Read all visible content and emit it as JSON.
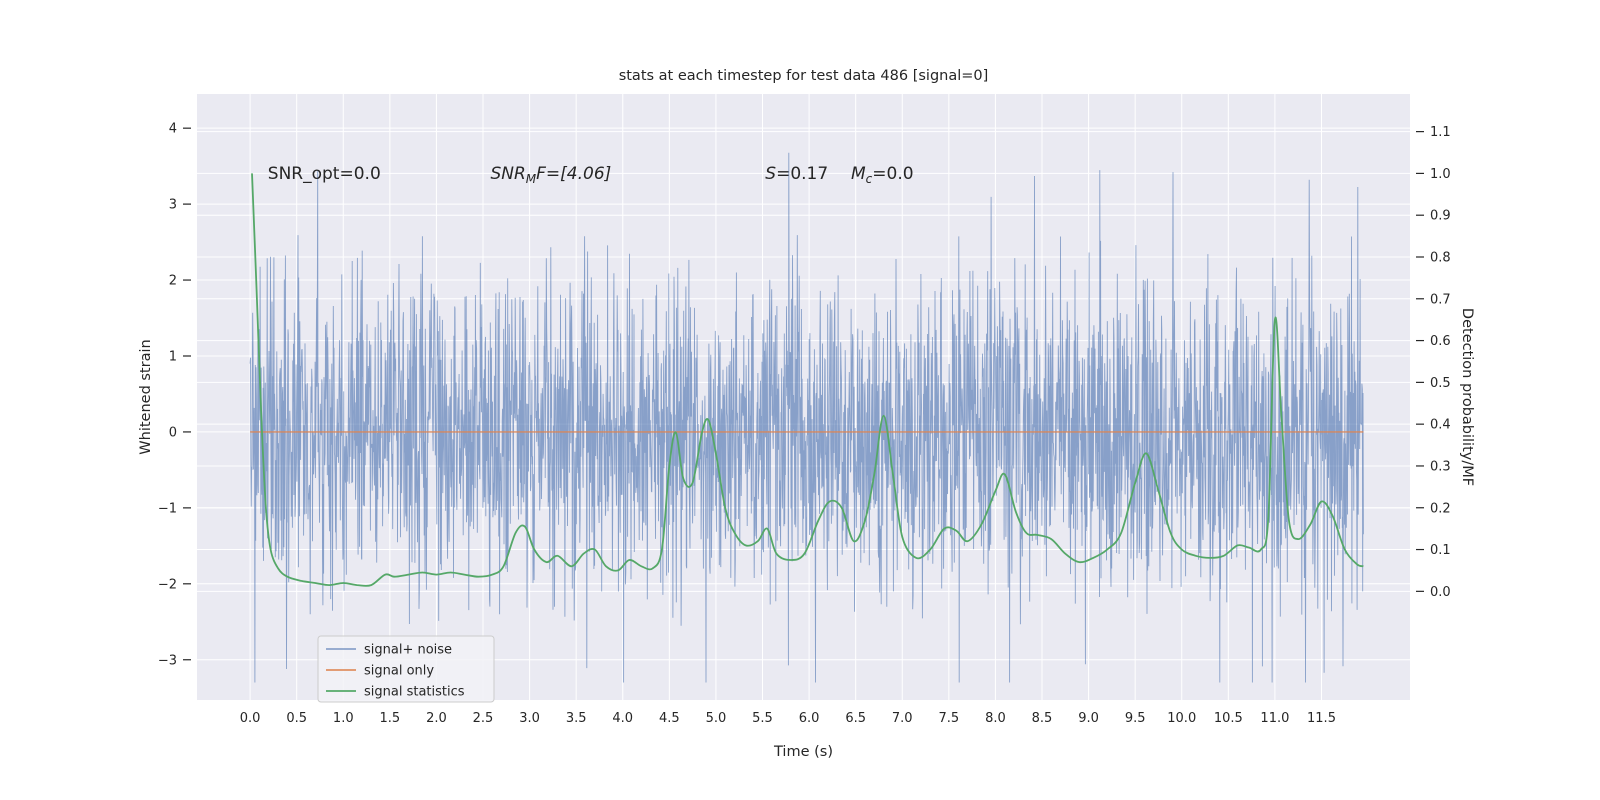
{
  "style": {
    "page_bg": "#ffffff",
    "plot_bg": "#eaeaf2",
    "grid": "#ffffff",
    "text": "#262626",
    "tick": "#262626",
    "legend_bg": "#f2f2f7",
    "legend_border": "#cccccc"
  },
  "chart_data": {
    "type": "line",
    "title": "stats at each timestep for test data 486 [signal=0]",
    "xlabel": "Time (s)",
    "ylabel_left": "Whitened strain",
    "ylabel_right": "Detection probability/MF",
    "xlim": [
      -0.57,
      12.45
    ],
    "ylim_left": [
      -3.53,
      4.45
    ],
    "ylim_right": [
      -0.26,
      1.19
    ],
    "x_tick_values": [
      0,
      0.5,
      1,
      1.5,
      2,
      2.5,
      3,
      3.5,
      4,
      4.5,
      5,
      5.5,
      6,
      6.5,
      7,
      7.5,
      8,
      8.5,
      9,
      9.5,
      10,
      10.5,
      11,
      11.5
    ],
    "x_tick_labels": [
      "0.0",
      "0.5",
      "1.0",
      "1.5",
      "2.0",
      "2.5",
      "3.0",
      "3.5",
      "4.0",
      "4.5",
      "5.0",
      "5.5",
      "6.0",
      "6.5",
      "7.0",
      "7.5",
      "8.0",
      "8.5",
      "9.0",
      "9.5",
      "10.0",
      "10.5",
      "11.0",
      "11.5"
    ],
    "y_left_tick_values": [
      -3,
      -2,
      -1,
      0,
      1,
      2,
      3,
      4
    ],
    "y_left_tick_labels": [
      "−3",
      "−2",
      "−1",
      "0",
      "1",
      "2",
      "3",
      "4"
    ],
    "y_right_tick_values": [
      0,
      0.1,
      0.2,
      0.3,
      0.4,
      0.5,
      0.6,
      0.7,
      0.8,
      0.9,
      1.0,
      1.1
    ],
    "y_right_tick_labels": [
      "0.0",
      "0.1",
      "0.2",
      "0.3",
      "0.4",
      "0.5",
      "0.6",
      "0.7",
      "0.8",
      "0.9",
      "1.0",
      "1.1"
    ],
    "series": [
      {
        "name": "signal+ noise",
        "axis": "left",
        "color": "#4C72B0",
        "opacity": 0.62,
        "kind": "noise",
        "noise": {
          "seed": 486,
          "n": 3000,
          "std": 1.03,
          "x_start": 0.0,
          "x_end": 11.95,
          "clip_low": -3.3,
          "clip_high": 4.15
        }
      },
      {
        "name": "signal only",
        "axis": "left",
        "color": "#DD8452",
        "opacity": 0.9,
        "kind": "flat",
        "value": 0.0,
        "x_start": 0.0,
        "x_end": 11.95
      },
      {
        "name": "signal statistics",
        "axis": "right",
        "color": "#55A868",
        "opacity": 1.0,
        "kind": "points",
        "points": [
          [
            0.02,
            1.0
          ],
          [
            0.07,
            0.72
          ],
          [
            0.12,
            0.42
          ],
          [
            0.17,
            0.2
          ],
          [
            0.22,
            0.1
          ],
          [
            0.3,
            0.055
          ],
          [
            0.4,
            0.035
          ],
          [
            0.55,
            0.025
          ],
          [
            0.7,
            0.02
          ],
          [
            0.85,
            0.015
          ],
          [
            1.0,
            0.02
          ],
          [
            1.15,
            0.015
          ],
          [
            1.3,
            0.015
          ],
          [
            1.45,
            0.04
          ],
          [
            1.55,
            0.035
          ],
          [
            1.7,
            0.04
          ],
          [
            1.85,
            0.045
          ],
          [
            2.0,
            0.04
          ],
          [
            2.15,
            0.045
          ],
          [
            2.3,
            0.04
          ],
          [
            2.45,
            0.035
          ],
          [
            2.6,
            0.04
          ],
          [
            2.72,
            0.06
          ],
          [
            2.85,
            0.14
          ],
          [
            2.95,
            0.155
          ],
          [
            3.05,
            0.1
          ],
          [
            3.18,
            0.07
          ],
          [
            3.3,
            0.085
          ],
          [
            3.45,
            0.06
          ],
          [
            3.58,
            0.09
          ],
          [
            3.7,
            0.1
          ],
          [
            3.82,
            0.06
          ],
          [
            3.95,
            0.05
          ],
          [
            4.07,
            0.075
          ],
          [
            4.2,
            0.06
          ],
          [
            4.32,
            0.055
          ],
          [
            4.42,
            0.1
          ],
          [
            4.5,
            0.3
          ],
          [
            4.57,
            0.38
          ],
          [
            4.65,
            0.27
          ],
          [
            4.75,
            0.26
          ],
          [
            4.85,
            0.38
          ],
          [
            4.92,
            0.41
          ],
          [
            5.0,
            0.33
          ],
          [
            5.1,
            0.2
          ],
          [
            5.2,
            0.14
          ],
          [
            5.32,
            0.11
          ],
          [
            5.45,
            0.12
          ],
          [
            5.55,
            0.15
          ],
          [
            5.65,
            0.09
          ],
          [
            5.8,
            0.075
          ],
          [
            5.95,
            0.09
          ],
          [
            6.1,
            0.17
          ],
          [
            6.22,
            0.215
          ],
          [
            6.35,
            0.2
          ],
          [
            6.48,
            0.12
          ],
          [
            6.6,
            0.17
          ],
          [
            6.7,
            0.28
          ],
          [
            6.8,
            0.42
          ],
          [
            6.9,
            0.28
          ],
          [
            7.0,
            0.13
          ],
          [
            7.15,
            0.08
          ],
          [
            7.3,
            0.1
          ],
          [
            7.45,
            0.15
          ],
          [
            7.58,
            0.145
          ],
          [
            7.7,
            0.12
          ],
          [
            7.85,
            0.16
          ],
          [
            8.0,
            0.24
          ],
          [
            8.1,
            0.28
          ],
          [
            8.22,
            0.19
          ],
          [
            8.33,
            0.14
          ],
          [
            8.45,
            0.135
          ],
          [
            8.6,
            0.125
          ],
          [
            8.75,
            0.09
          ],
          [
            8.9,
            0.07
          ],
          [
            9.05,
            0.08
          ],
          [
            9.2,
            0.1
          ],
          [
            9.35,
            0.14
          ],
          [
            9.5,
            0.26
          ],
          [
            9.62,
            0.33
          ],
          [
            9.75,
            0.24
          ],
          [
            9.88,
            0.14
          ],
          [
            10.0,
            0.1
          ],
          [
            10.15,
            0.085
          ],
          [
            10.3,
            0.08
          ],
          [
            10.45,
            0.085
          ],
          [
            10.6,
            0.11
          ],
          [
            10.72,
            0.105
          ],
          [
            10.85,
            0.1
          ],
          [
            10.93,
            0.18
          ],
          [
            11.0,
            0.65
          ],
          [
            11.07,
            0.42
          ],
          [
            11.15,
            0.17
          ],
          [
            11.25,
            0.125
          ],
          [
            11.38,
            0.16
          ],
          [
            11.5,
            0.215
          ],
          [
            11.62,
            0.18
          ],
          [
            11.75,
            0.1
          ],
          [
            11.88,
            0.065
          ],
          [
            11.95,
            0.06
          ]
        ]
      }
    ],
    "annotations": [
      {
        "name": "annotation-snr-opt",
        "x": 0.19,
        "y": 3.33,
        "segments": [
          {
            "t": "SNR_opt=0.0"
          }
        ]
      },
      {
        "name": "annotation-snr-mf",
        "x": 2.58,
        "y": 3.33,
        "segments": [
          {
            "t": "SNR",
            "i": true
          },
          {
            "t": "M",
            "i": true,
            "sub": true
          },
          {
            "t": "F=[4.06]",
            "i": true
          }
        ]
      },
      {
        "name": "annotation-s-stat",
        "x": 5.53,
        "y": 3.33,
        "segments": [
          {
            "t": "S",
            "i": true
          },
          {
            "t": "=0.17"
          }
        ]
      },
      {
        "name": "annotation-mc",
        "x": 6.45,
        "y": 3.33,
        "segments": [
          {
            "t": "M",
            "i": true
          },
          {
            "t": "c",
            "i": true,
            "sub": true
          },
          {
            "t": "=0.0"
          }
        ]
      }
    ],
    "legend": {
      "position": "lower left",
      "entries": [
        "signal+ noise",
        "signal only",
        "signal statistics"
      ]
    }
  }
}
